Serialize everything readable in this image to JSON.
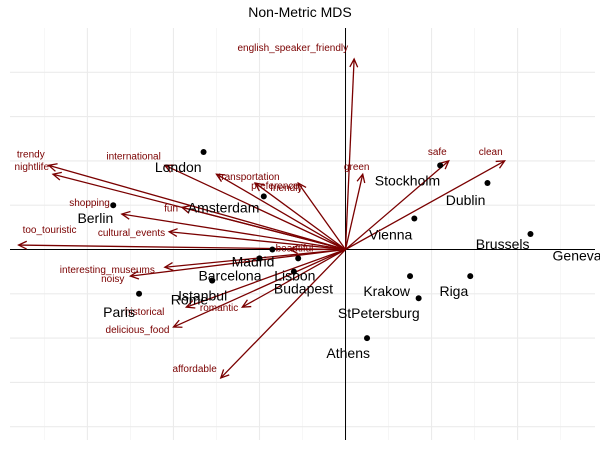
{
  "chart_data": {
    "type": "scatter",
    "title": "Non-Metric MDS",
    "xlabel": "",
    "ylabel": "",
    "xlim": [
      -0.78,
      0.58
    ],
    "ylim": [
      -0.43,
      0.5
    ],
    "grid": true,
    "zero_lines": true,
    "colors": {
      "points": "#000000",
      "arrows": "#7a0000",
      "grid": "#ebebeb"
    },
    "points": [
      {
        "name": "London",
        "x": -0.33,
        "y": 0.22
      },
      {
        "name": "Berlin",
        "x": -0.54,
        "y": 0.1
      },
      {
        "name": "Amsterdam",
        "x": -0.19,
        "y": 0.12
      },
      {
        "name": "Stockholm",
        "x": 0.22,
        "y": 0.19
      },
      {
        "name": "Dublin",
        "x": 0.33,
        "y": 0.15
      },
      {
        "name": "Vienna",
        "x": 0.16,
        "y": 0.07
      },
      {
        "name": "Brussels",
        "x": 0.43,
        "y": 0.035
      },
      {
        "name": "Geneva",
        "x": 0.6,
        "y": 0.02
      },
      {
        "name": "Madrid",
        "x": -0.17,
        "y": -0.0
      },
      {
        "name": "Barcelona",
        "x": -0.2,
        "y": -0.02
      },
      {
        "name": "Lisbon",
        "x": -0.11,
        "y": -0.02
      },
      {
        "name": "Budapest",
        "x": -0.12,
        "y": -0.05
      },
      {
        "name": "Istanbul",
        "x": -0.31,
        "y": -0.07
      },
      {
        "name": "Rome",
        "x": -0.31,
        "y": -0.07
      },
      {
        "name": "Paris",
        "x": -0.48,
        "y": -0.1
      },
      {
        "name": "Krakow",
        "x": 0.15,
        "y": -0.06
      },
      {
        "name": "Riga",
        "x": 0.29,
        "y": -0.06
      },
      {
        "name": "StPetersburg",
        "x": 0.17,
        "y": -0.11
      },
      {
        "name": "Athens",
        "x": 0.05,
        "y": -0.2
      }
    ],
    "vectors": [
      {
        "name": "english_speaker_friendly",
        "x": 0.02,
        "y": 0.43
      },
      {
        "name": "trendy",
        "x": -0.69,
        "y": 0.19
      },
      {
        "name": "nightlife",
        "x": -0.68,
        "y": 0.17
      },
      {
        "name": "international",
        "x": -0.42,
        "y": 0.19
      },
      {
        "name": "transportation",
        "x": -0.3,
        "y": 0.17
      },
      {
        "name": "preference",
        "x": -0.21,
        "y": 0.15
      },
      {
        "name": "green",
        "x": 0.04,
        "y": 0.17
      },
      {
        "name": "friendly",
        "x": -0.11,
        "y": 0.15
      },
      {
        "name": "safe",
        "x": 0.24,
        "y": 0.2
      },
      {
        "name": "clean",
        "x": 0.37,
        "y": 0.2
      },
      {
        "name": "shopping",
        "x": -0.52,
        "y": 0.08
      },
      {
        "name": "fun",
        "x": -0.38,
        "y": 0.095
      },
      {
        "name": "cultural_events",
        "x": -0.41,
        "y": 0.04
      },
      {
        "name": "too_touristic",
        "x": -0.76,
        "y": 0.01
      },
      {
        "name": "beautiful",
        "x": -0.13,
        "y": 0.0
      },
      {
        "name": "interesting_museums",
        "x": -0.42,
        "y": -0.04
      },
      {
        "name": "noisy",
        "x": -0.5,
        "y": -0.06
      },
      {
        "name": "historical",
        "x": -0.37,
        "y": -0.13
      },
      {
        "name": "romantic",
        "x": -0.24,
        "y": -0.13
      },
      {
        "name": "delicious_food",
        "x": -0.4,
        "y": -0.175
      },
      {
        "name": "affordable",
        "x": -0.29,
        "y": -0.29
      }
    ]
  }
}
